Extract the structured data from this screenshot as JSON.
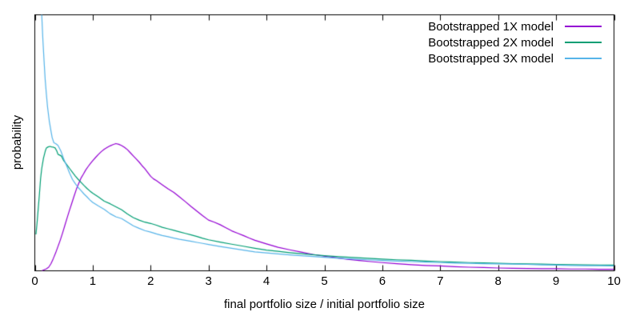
{
  "figure": {
    "background": "#ffffff",
    "axis_color": "#000000",
    "text_color": "#000000"
  },
  "chart_data": {
    "type": "line",
    "title": "",
    "xlabel": "final portfolio size / initial portfolio size",
    "ylabel": "probability",
    "xlim": [
      0,
      10
    ],
    "ylim": [
      0,
      1
    ],
    "xticks": [
      0,
      1,
      2,
      3,
      4,
      5,
      6,
      7,
      8,
      9,
      10
    ],
    "yticks": [],
    "y_axis_numbers_shown": false,
    "y_units": "relative probability (axis shows no numeric scale; values normalized to plot height)",
    "grid": false,
    "legend_position": "top-right-inside",
    "series": [
      {
        "name": "Bootstrapped 1X model",
        "color": "#9400d3",
        "x": [
          0.12,
          0.16,
          0.2,
          0.24,
          0.28,
          0.32,
          0.36,
          0.4,
          0.44,
          0.48,
          0.52,
          0.56,
          0.6,
          0.64,
          0.68,
          0.72,
          0.76,
          0.8,
          0.84,
          0.88,
          0.92,
          0.96,
          1.0,
          1.05,
          1.1,
          1.15,
          1.2,
          1.25,
          1.3,
          1.35,
          1.4,
          1.45,
          1.5,
          1.55,
          1.6,
          1.65,
          1.7,
          1.75,
          1.8,
          1.85,
          1.9,
          1.95,
          2.0,
          2.05,
          2.1,
          2.2,
          2.3,
          2.4,
          2.5,
          2.6,
          2.7,
          2.8,
          2.9,
          3.0,
          3.1,
          3.2,
          3.3,
          3.4,
          3.5,
          3.6,
          3.7,
          3.8,
          3.9,
          4.0,
          4.2,
          4.4,
          4.6,
          4.8,
          5.0,
          5.2,
          5.4,
          5.6,
          5.8,
          6.0,
          6.25,
          6.5,
          6.75,
          7.0,
          7.25,
          7.5,
          7.75,
          8.0,
          8.25,
          8.5,
          8.75,
          9.0,
          9.25,
          9.5,
          9.75,
          10.0
        ],
        "y": [
          0.0,
          0.004,
          0.008,
          0.014,
          0.028,
          0.048,
          0.07,
          0.095,
          0.12,
          0.148,
          0.178,
          0.208,
          0.237,
          0.265,
          0.293,
          0.32,
          0.342,
          0.363,
          0.378,
          0.394,
          0.407,
          0.419,
          0.43,
          0.443,
          0.455,
          0.466,
          0.475,
          0.482,
          0.488,
          0.493,
          0.497,
          0.494,
          0.489,
          0.482,
          0.473,
          0.461,
          0.449,
          0.437,
          0.425,
          0.411,
          0.399,
          0.384,
          0.369,
          0.359,
          0.352,
          0.336,
          0.32,
          0.306,
          0.288,
          0.27,
          0.251,
          0.233,
          0.215,
          0.198,
          0.19,
          0.18,
          0.168,
          0.156,
          0.147,
          0.138,
          0.128,
          0.119,
          0.112,
          0.105,
          0.092,
          0.082,
          0.073,
          0.064,
          0.057,
          0.051,
          0.045,
          0.04,
          0.036,
          0.032,
          0.028,
          0.024,
          0.021,
          0.019,
          0.016,
          0.014,
          0.013,
          0.011,
          0.01,
          0.009,
          0.008,
          0.008,
          0.007,
          0.007,
          0.006,
          0.006
        ]
      },
      {
        "name": "Bootstrapped 2X model",
        "color": "#009e73",
        "x": [
          0.02,
          0.04,
          0.06,
          0.08,
          0.1,
          0.12,
          0.15,
          0.18,
          0.2,
          0.23,
          0.26,
          0.29,
          0.32,
          0.35,
          0.38,
          0.4,
          0.43,
          0.46,
          0.5,
          0.55,
          0.6,
          0.65,
          0.7,
          0.75,
          0.8,
          0.85,
          0.9,
          0.95,
          1.0,
          1.1,
          1.2,
          1.3,
          1.4,
          1.5,
          1.6,
          1.7,
          1.8,
          1.9,
          2.0,
          2.1,
          2.2,
          2.3,
          2.4,
          2.5,
          2.6,
          2.7,
          2.8,
          2.9,
          3.0,
          3.2,
          3.4,
          3.6,
          3.8,
          4.0,
          4.2,
          4.4,
          4.6,
          4.8,
          5.0,
          5.25,
          5.5,
          5.75,
          6.0,
          6.25,
          6.5,
          6.75,
          7.0,
          7.25,
          7.5,
          7.75,
          8.0,
          8.25,
          8.5,
          8.75,
          9.0,
          9.25,
          9.5,
          9.75,
          10.0
        ],
        "y": [
          0.142,
          0.19,
          0.245,
          0.3,
          0.36,
          0.4,
          0.44,
          0.467,
          0.48,
          0.484,
          0.486,
          0.484,
          0.483,
          0.48,
          0.468,
          0.455,
          0.452,
          0.448,
          0.43,
          0.415,
          0.4,
          0.385,
          0.37,
          0.357,
          0.345,
          0.333,
          0.322,
          0.312,
          0.303,
          0.288,
          0.272,
          0.262,
          0.25,
          0.238,
          0.222,
          0.208,
          0.198,
          0.19,
          0.185,
          0.178,
          0.17,
          0.164,
          0.158,
          0.152,
          0.146,
          0.14,
          0.134,
          0.127,
          0.121,
          0.112,
          0.104,
          0.096,
          0.088,
          0.081,
          0.076,
          0.071,
          0.067,
          0.063,
          0.059,
          0.055,
          0.052,
          0.049,
          0.046,
          0.043,
          0.041,
          0.038,
          0.036,
          0.034,
          0.032,
          0.031,
          0.029,
          0.028,
          0.027,
          0.026,
          0.025,
          0.024,
          0.023,
          0.022,
          0.022
        ]
      },
      {
        "name": "Bootstrapped 3X model",
        "color": "#56b4e9",
        "x": [
          0.1,
          0.12,
          0.14,
          0.16,
          0.18,
          0.2,
          0.22,
          0.25,
          0.28,
          0.3,
          0.33,
          0.36,
          0.4,
          0.45,
          0.5,
          0.55,
          0.6,
          0.65,
          0.7,
          0.75,
          0.8,
          0.85,
          0.9,
          0.95,
          1.0,
          1.1,
          1.2,
          1.3,
          1.4,
          1.5,
          1.6,
          1.7,
          1.8,
          1.9,
          2.0,
          2.1,
          2.2,
          2.3,
          2.4,
          2.5,
          2.6,
          2.7,
          2.8,
          2.9,
          3.0,
          3.2,
          3.4,
          3.6,
          3.8,
          4.0,
          4.2,
          4.4,
          4.6,
          4.8,
          5.0,
          5.25,
          5.5,
          5.75,
          6.0,
          6.25,
          6.5,
          6.75,
          7.0,
          7.25,
          7.5,
          7.75,
          8.0,
          8.25,
          8.5,
          8.75,
          9.0,
          9.25,
          9.5,
          9.75,
          10.0
        ],
        "y": [
          1.3,
          1.0,
          0.9,
          0.82,
          0.745,
          0.69,
          0.64,
          0.585,
          0.545,
          0.52,
          0.5,
          0.497,
          0.49,
          0.468,
          0.437,
          0.41,
          0.382,
          0.357,
          0.34,
          0.325,
          0.313,
          0.3,
          0.289,
          0.277,
          0.267,
          0.253,
          0.24,
          0.223,
          0.211,
          0.204,
          0.19,
          0.176,
          0.166,
          0.157,
          0.151,
          0.144,
          0.138,
          0.133,
          0.128,
          0.123,
          0.119,
          0.115,
          0.111,
          0.107,
          0.103,
          0.095,
          0.088,
          0.081,
          0.074,
          0.07,
          0.066,
          0.062,
          0.059,
          0.056,
          0.053,
          0.049,
          0.046,
          0.043,
          0.04,
          0.038,
          0.036,
          0.034,
          0.032,
          0.03,
          0.029,
          0.028,
          0.027,
          0.026,
          0.025,
          0.023,
          0.022,
          0.021,
          0.02,
          0.02,
          0.019
        ]
      }
    ]
  }
}
